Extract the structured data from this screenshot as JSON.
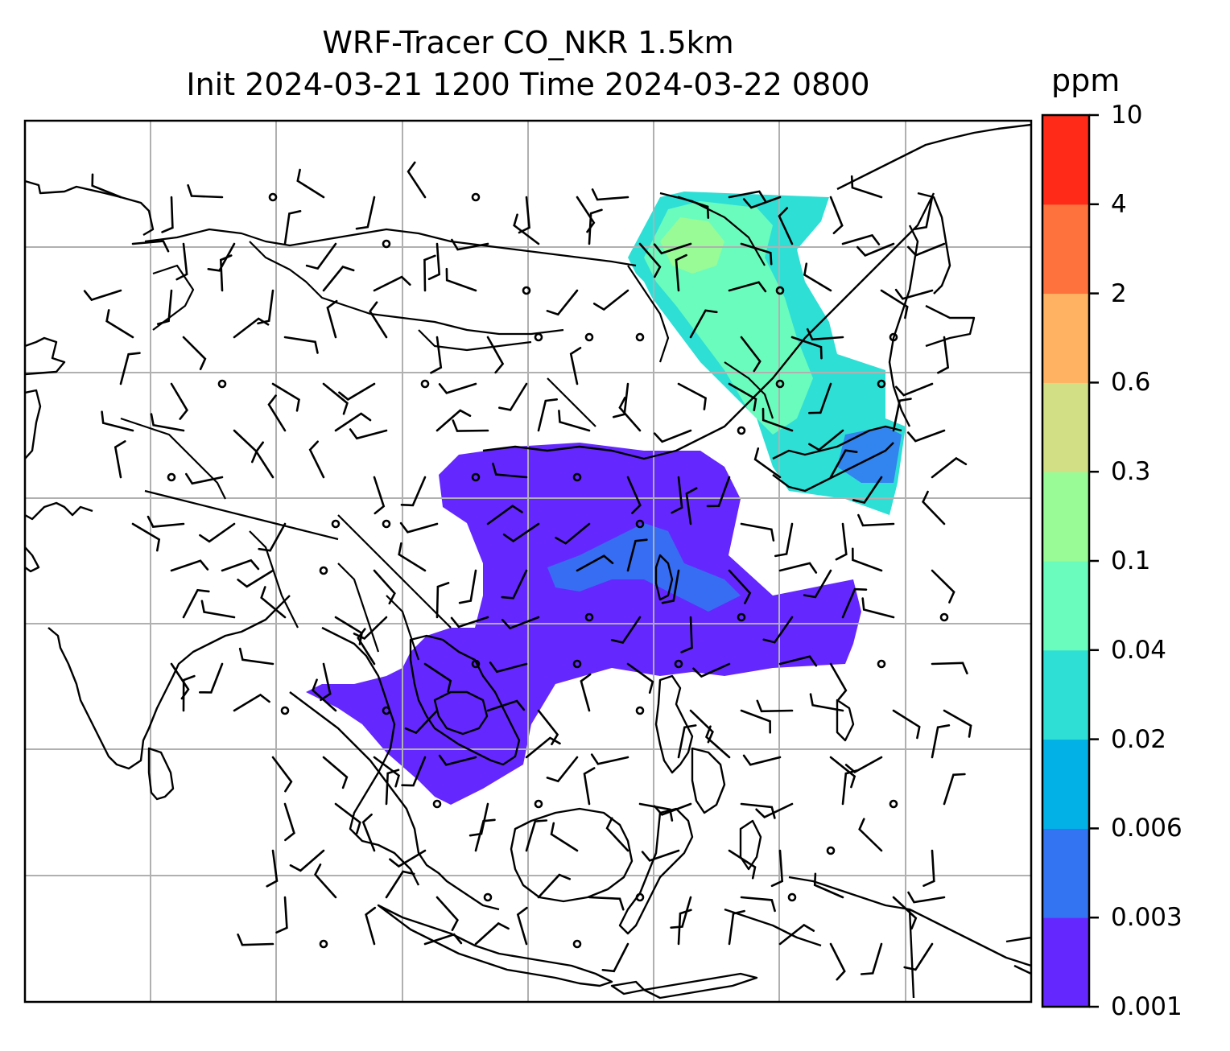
{
  "title_line1": "WRF-Tracer CO_NKR 1.5km",
  "title_line2": "Init 2024-03-21 1200 Time 2024-03-22 0800",
  "colorbar": {
    "unit": "ppm",
    "levels": [
      "0.001",
      "0.003",
      "0.006",
      "0.02",
      "0.04",
      "0.1",
      "0.3",
      "0.6",
      "2",
      "4",
      "10"
    ],
    "colors": [
      "#6428ff",
      "#3274f2",
      "#02b2e7",
      "#2edfd6",
      "#6afcbd",
      "#98fb96",
      "#d2df84",
      "#feb262",
      "#fe733d",
      "#ff2a18"
    ]
  },
  "map": {
    "features": [
      "coastlines",
      "country-borders",
      "gridlines",
      "wind-barbs",
      "co-tracer-concentration"
    ],
    "plume_colors": {
      "low": "#6428ff",
      "mid": "#3274f2",
      "teal": "#2edfd6",
      "mint": "#6afcbd",
      "light": "#98fb96"
    }
  }
}
